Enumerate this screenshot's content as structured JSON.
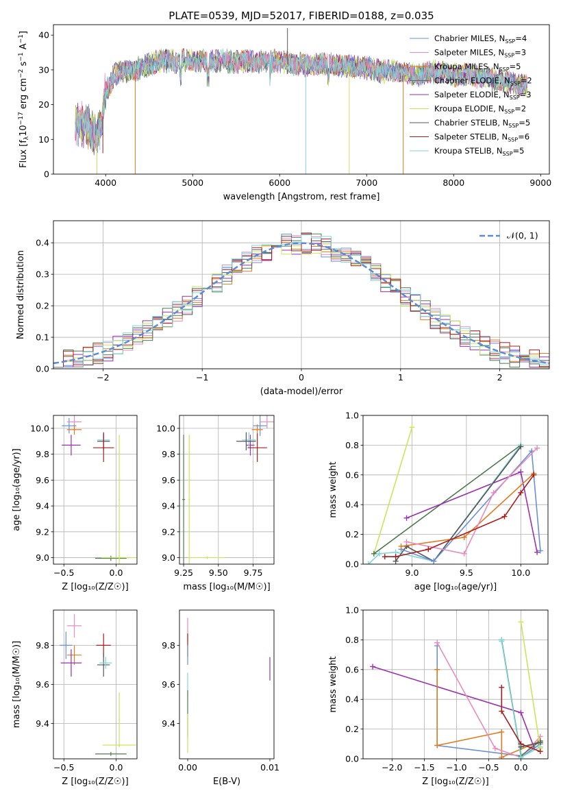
{
  "colors": {
    "Chabrier MILES": "#6a8fd8",
    "Salpeter MILES": "#e98bbd",
    "Kroupa MILES": "#e07b1e",
    "Chabrier ELODIE": "#4d7a4d",
    "Salpeter ELODIE": "#9b2fae",
    "Kroupa ELODIE": "#c9e65a",
    "Chabrier STELIB": "#555555",
    "Salpeter STELIB": "#a81c1c",
    "Kroupa STELIB": "#7fd6d9",
    "gauss": "#5b8ad6"
  },
  "chart_data": [
    {
      "id": "spectrum",
      "type": "line",
      "title": "PLATE=0539, MJD=52017, FIBERID=0188, z=0.035",
      "xlabel": "wavelength [Angstrom, rest frame]",
      "ylabel_parts": [
        "Flux [f",
        "λ",
        "10",
        "−17",
        " erg cm",
        "−2",
        " s",
        "−1",
        " A",
        "−1",
        "]"
      ],
      "xlim": [
        3400,
        9100
      ],
      "ylim": [
        0,
        43
      ],
      "xticks": [
        4000,
        5000,
        6000,
        7000,
        8000,
        9000
      ],
      "yticks": [
        0,
        10,
        20,
        30,
        40
      ],
      "legend": [
        {
          "model": "Chabrier MILES",
          "label": "Chabrier MILES, N",
          "sub": "SSP",
          "n": "=4"
        },
        {
          "model": "Salpeter MILES",
          "label": "Salpeter MILES, N",
          "sub": "SSP",
          "n": "=3"
        },
        {
          "model": "Kroupa MILES",
          "label": "Kroupa MILES, N",
          "sub": "SSP",
          "n": "=5"
        },
        {
          "model": "Chabrier ELODIE",
          "label": "Chabrier ELODIE, N",
          "sub": "SSP",
          "n": "=2"
        },
        {
          "model": "Salpeter ELODIE",
          "label": "Salpeter ELODIE, N",
          "sub": "SSP",
          "n": "=3"
        },
        {
          "model": "Kroupa ELODIE",
          "label": "Kroupa ELODIE, N",
          "sub": "SSP",
          "n": "=2"
        },
        {
          "model": "Chabrier STELIB",
          "label": "Chabrier STELIB, N",
          "sub": "SSP",
          "n": "=5"
        },
        {
          "model": "Salpeter STELIB",
          "label": "Salpeter STELIB, N",
          "sub": "SSP",
          "n": "=6"
        },
        {
          "model": "Kroupa STELIB",
          "label": "Kroupa STELIB, N",
          "sub": "SSP",
          "n": "=5"
        }
      ],
      "continuum": [
        [
          3650,
          18
        ],
        [
          3800,
          16
        ],
        [
          3900,
          14
        ],
        [
          3950,
          16
        ],
        [
          4000,
          26
        ],
        [
          4100,
          31
        ],
        [
          4200,
          32
        ],
        [
          4400,
          33
        ],
        [
          4600,
          35
        ],
        [
          4800,
          35
        ],
        [
          5000,
          35
        ],
        [
          5200,
          35
        ],
        [
          5400,
          35
        ],
        [
          5600,
          35
        ],
        [
          5800,
          35
        ],
        [
          6000,
          35
        ],
        [
          6200,
          34
        ],
        [
          6400,
          34
        ],
        [
          6600,
          34
        ],
        [
          6800,
          33.5
        ],
        [
          7000,
          33
        ],
        [
          7200,
          32
        ],
        [
          7400,
          32
        ],
        [
          7600,
          31
        ],
        [
          7800,
          32
        ],
        [
          8000,
          31
        ],
        [
          8200,
          31
        ],
        [
          8400,
          30
        ],
        [
          8600,
          29
        ],
        [
          8850,
          28
        ]
      ],
      "dips": [
        {
          "x": 3934,
          "y": 7,
          "model": "Kroupa STELIB"
        },
        {
          "x": 3968,
          "y": 6,
          "model": "Salpeter STELIB"
        },
        {
          "x": 3900,
          "y": 0,
          "model": "Kroupa ELODIE"
        },
        {
          "x": 4340,
          "y": 0,
          "model": "Kroupa MILES"
        },
        {
          "x": 6300,
          "y": 0,
          "model": "Kroupa STELIB"
        },
        {
          "x": 6800,
          "y": 0,
          "model": "Kroupa ELODIE"
        },
        {
          "x": 7420,
          "y": 0,
          "model": "Kroupa MILES"
        },
        {
          "x": 6090,
          "y": 42,
          "model": "Chabrier STELIB"
        }
      ]
    },
    {
      "id": "residuals",
      "type": "histogram",
      "xlabel": "(data-model)/error",
      "ylabel": "Normed distribution",
      "xlim": [
        -2.5,
        2.5
      ],
      "ylim": [
        0,
        0.47
      ],
      "xticks": [
        -2,
        -1,
        0,
        1,
        2
      ],
      "yticks": [
        0.0,
        0.1,
        0.2,
        0.3,
        0.4
      ],
      "grid": true,
      "legend": {
        "label": "𝒩(0, 1)",
        "position": "top-right"
      }
    },
    {
      "id": "age-vs-Z",
      "type": "errorbar",
      "xlabel": "Z [log₁₀(Z/Z☉)]",
      "ylabel": "age  [log₁₀(age/yr)]",
      "xlim": [
        -0.6,
        0.2
      ],
      "ylim": [
        8.95,
        10.1
      ],
      "xticks": [
        -0.5,
        0.0
      ],
      "yticks": [
        9.0,
        9.2,
        9.4,
        9.6,
        9.8,
        10.0
      ],
      "grid": true,
      "points": [
        {
          "model": "Chabrier MILES",
          "x": -0.45,
          "xerr": 0.07,
          "y": 10.02,
          "yerr": 0.06
        },
        {
          "model": "Salpeter MILES",
          "x": -0.4,
          "xerr": 0.07,
          "y": 10.05,
          "yerr": 0.05
        },
        {
          "model": "Kroupa MILES",
          "x": -0.4,
          "xerr": 0.07,
          "y": 9.99,
          "yerr": 0.04
        },
        {
          "model": "Salpeter ELODIE",
          "x": -0.43,
          "xerr": 0.09,
          "y": 9.87,
          "yerr": 0.08
        },
        {
          "model": "Kroupa STELIB",
          "x": -0.12,
          "xerr": 0.06,
          "y": 9.91,
          "yerr": 0.06
        },
        {
          "model": "Chabrier STELIB",
          "x": -0.12,
          "xerr": 0.06,
          "y": 9.9,
          "yerr": 0.07
        },
        {
          "model": "Salpeter STELIB",
          "x": -0.12,
          "xerr": 0.1,
          "y": 9.85,
          "yerr": 0.11
        },
        {
          "model": "Chabrier ELODIE",
          "x": -0.05,
          "xerr": 0.15,
          "y": 8.995,
          "yerr": 0.02
        },
        {
          "model": "Kroupa ELODIE",
          "x": 0.03,
          "xerr": 0.17,
          "y": 9.0,
          "yerr": 0.02
        },
        {
          "model": "Kroupa ELODIE",
          "x": 0.03,
          "xerr": 0.005,
          "y": 9.45,
          "yerr": 0.5
        }
      ]
    },
    {
      "id": "age-vs-mass",
      "type": "errorbar",
      "xlabel": "mass [log₁₀(M/M☉)]",
      "ylabel": "",
      "xlim": [
        9.22,
        9.9
      ],
      "ylim": [
        8.95,
        10.1
      ],
      "xticks": [
        9.25,
        9.5,
        9.75
      ],
      "yticks": [
        9.0,
        9.2,
        9.4,
        9.6,
        9.8,
        10.0
      ],
      "grid": true,
      "points": [
        {
          "model": "Chabrier MILES",
          "x": 9.8,
          "xerr": 0.05,
          "y": 10.02,
          "yerr": 0.08
        },
        {
          "model": "Salpeter MILES",
          "x": 9.85,
          "xerr": 0.05,
          "y": 10.05,
          "yerr": 0.05
        },
        {
          "model": "Kroupa MILES",
          "x": 9.78,
          "xerr": 0.04,
          "y": 9.99,
          "yerr": 0.04
        },
        {
          "model": "Salpeter ELODIE",
          "x": 9.73,
          "xerr": 0.03,
          "y": 9.87,
          "yerr": 0.08
        },
        {
          "model": "Kroupa STELIB",
          "x": 9.72,
          "xerr": 0.05,
          "y": 9.91,
          "yerr": 0.06
        },
        {
          "model": "Chabrier STELIB",
          "x": 9.7,
          "xerr": 0.07,
          "y": 9.9,
          "yerr": 0.07
        },
        {
          "model": "Salpeter STELIB",
          "x": 9.78,
          "xerr": 0.07,
          "y": 9.85,
          "yerr": 0.11
        },
        {
          "model": "Chabrier ELODIE",
          "x": 9.25,
          "xerr": 0.01,
          "y": 9.45,
          "yerr": 0.5
        },
        {
          "model": "Kroupa ELODIE",
          "x": 9.29,
          "xerr": 0.005,
          "y": 9.45,
          "yerr": 0.5
        },
        {
          "model": "Kroupa ELODIE",
          "x": 9.42,
          "xerr": 0.13,
          "y": 9.0,
          "yerr": 0.01
        }
      ]
    },
    {
      "id": "weight-vs-age",
      "type": "line",
      "xlabel": "age  [log₁₀(age/yr)]",
      "ylabel": "mass weight",
      "xlim": [
        8.55,
        10.25
      ],
      "ylim": [
        0,
        1.0
      ],
      "xticks": [
        9.0,
        9.5,
        10.0
      ],
      "yticks": [
        0.0,
        0.2,
        0.4,
        0.6,
        0.8,
        1.0
      ],
      "grid": true,
      "series": [
        {
          "model": "Kroupa ELODIE",
          "x": [
            8.65,
            9.0
          ],
          "y": [
            0.07,
            0.92
          ]
        },
        {
          "model": "Chabrier ELODIE",
          "x": [
            8.65,
            10.0
          ],
          "y": [
            0.07,
            0.8
          ]
        },
        {
          "model": "Salpeter ELODIE",
          "x": [
            8.95,
            10.0,
            10.15
          ],
          "y": [
            0.31,
            0.62,
            0.08
          ]
        },
        {
          "model": "Kroupa STELIB",
          "x": [
            8.6,
            8.7,
            8.85,
            9.2,
            10.0
          ],
          "y": [
            0.0,
            0.07,
            0.08,
            0.02,
            0.8
          ]
        },
        {
          "model": "Chabrier STELIB",
          "x": [
            8.85,
            8.95,
            9.2,
            10.0
          ],
          "y": [
            0.02,
            0.12,
            0.02,
            0.79
          ]
        },
        {
          "model": "Chabrier MILES",
          "x": [
            8.9,
            9.2,
            10.1,
            10.18
          ],
          "y": [
            0.1,
            0.02,
            0.76,
            0.09
          ]
        },
        {
          "model": "Kroupa MILES",
          "x": [
            8.9,
            9.48,
            10.12
          ],
          "y": [
            0.12,
            0.18,
            0.61
          ]
        },
        {
          "model": "Salpeter MILES",
          "x": [
            8.95,
            9.48,
            9.75,
            10.15
          ],
          "y": [
            0.15,
            0.07,
            0.48,
            0.78
          ]
        },
        {
          "model": "Salpeter STELIB",
          "x": [
            8.75,
            8.85,
            9.15,
            9.85,
            10.0,
            10.12
          ],
          "y": [
            0.05,
            0.05,
            0.1,
            0.32,
            0.48,
            0.6
          ]
        }
      ]
    },
    {
      "id": "mass-vs-Z",
      "type": "errorbar",
      "xlabel": "Z [log₁₀(Z/Z☉)]",
      "ylabel": "mass [log₁₀(M/M☉)]",
      "xlim": [
        -0.6,
        0.2
      ],
      "ylim": [
        9.22,
        9.98
      ],
      "xticks": [
        -0.5,
        0.0
      ],
      "yticks": [
        9.4,
        9.6,
        9.8
      ],
      "grid": true,
      "points": [
        {
          "model": "Chabrier MILES",
          "x": -0.48,
          "xerr": 0.06,
          "y": 9.8,
          "yerr": 0.07
        },
        {
          "model": "Salpeter MILES",
          "x": -0.4,
          "xerr": 0.07,
          "y": 9.9,
          "yerr": 0.06
        },
        {
          "model": "Kroupa MILES",
          "x": -0.4,
          "xerr": 0.07,
          "y": 9.75,
          "yerr": 0.05
        },
        {
          "model": "Salpeter ELODIE",
          "x": -0.43,
          "xerr": 0.1,
          "y": 9.71,
          "yerr": 0.07
        },
        {
          "model": "Salpeter STELIB",
          "x": -0.12,
          "xerr": 0.07,
          "y": 9.8,
          "yerr": 0.06
        },
        {
          "model": "Chabrier STELIB",
          "x": -0.12,
          "xerr": 0.06,
          "y": 9.7,
          "yerr": 0.06
        },
        {
          "model": "Kroupa STELIB",
          "x": -0.1,
          "xerr": 0.06,
          "y": 9.71,
          "yerr": 0.03
        },
        {
          "model": "Kroupa ELODIE",
          "x": 0.03,
          "xerr": 0.16,
          "y": 9.29,
          "yerr": 0.01
        },
        {
          "model": "Chabrier ELODIE",
          "x": -0.05,
          "xerr": 0.15,
          "y": 9.245,
          "yerr": 0.01
        },
        {
          "model": "Kroupa ELODIE",
          "x": 0.03,
          "xerr": 0.005,
          "y": 9.42,
          "yerr": 0.14
        }
      ]
    },
    {
      "id": "EBV",
      "type": "errorbar",
      "xlabel": "E(B-V)",
      "ylabel": "",
      "xlim": [
        -0.001,
        0.0105
      ],
      "ylim": [
        9.22,
        9.98
      ],
      "xticks": [
        0.0,
        0.01
      ],
      "yticks": [
        9.4,
        9.6,
        9.8
      ],
      "grid": false,
      "points": [
        {
          "model": "Salpeter MILES",
          "x": 0.0,
          "xerr": 3e-05,
          "y": 9.88,
          "yerr": 0.06
        },
        {
          "model": "Salpeter STELIB",
          "x": 0.0,
          "xerr": 3e-05,
          "y": 9.8,
          "yerr": 0.06
        },
        {
          "model": "Chabrier MILES",
          "x": 0.0,
          "xerr": 3e-05,
          "y": 9.75,
          "yerr": 0.05
        },
        {
          "model": "Kroupa STELIB",
          "x": 0.0,
          "xerr": 3e-05,
          "y": 9.6,
          "yerr": 0.06
        },
        {
          "model": "Chabrier ELODIE",
          "x": 0.0,
          "xerr": 3e-05,
          "y": 9.45,
          "yerr": 0.12
        },
        {
          "model": "Kroupa ELODIE",
          "x": 0.0,
          "xerr": 3e-05,
          "y": 9.35,
          "yerr": 0.1
        },
        {
          "model": "Salpeter ELODIE",
          "x": 0.01,
          "xerr": 3e-05,
          "y": 9.68,
          "yerr": 0.06
        }
      ]
    },
    {
      "id": "weight-vs-Z",
      "type": "line",
      "xlabel": "Z [log₁₀(Z/Z☉)]",
      "ylabel": "mass weight",
      "xlim": [
        -2.45,
        0.42
      ],
      "ylim": [
        0,
        1.0
      ],
      "xticks": [
        -2.0,
        -1.5,
        -1.0,
        -0.5,
        0.0
      ],
      "yticks": [
        0.0,
        0.2,
        0.4,
        0.6,
        0.8,
        1.0
      ],
      "grid": true,
      "series": [
        {
          "model": "Salpeter ELODIE",
          "x": [
            -2.3,
            0.0,
            0.2
          ],
          "y": [
            0.62,
            0.31,
            0.08
          ]
        },
        {
          "model": "Chabrier MILES",
          "x": [
            -1.3,
            -1.3,
            -1.3,
            0.0,
            0.0,
            0.3
          ],
          "y": [
            0.76,
            0.6,
            0.09,
            0.02,
            0.01,
            0.1
          ]
        },
        {
          "model": "Kroupa MILES",
          "x": [
            -1.3,
            -1.3,
            -0.3,
            -0.3,
            0.3
          ],
          "y": [
            0.6,
            0.09,
            0.18,
            0.01,
            0.12
          ]
        },
        {
          "model": "Salpeter MILES",
          "x": [
            -1.3,
            -0.4,
            0.0,
            0.3
          ],
          "y": [
            0.78,
            0.07,
            0.01,
            0.15
          ]
        },
        {
          "model": "Chabrier ELODIE",
          "x": [
            -0.3,
            0.0,
            0.3
          ],
          "y": [
            0.8,
            0.02,
            0.12
          ]
        },
        {
          "model": "Kroupa STELIB",
          "x": [
            -0.3,
            -0.3,
            0.0,
            0.3
          ],
          "y": [
            0.8,
            0.79,
            0.01,
            0.08
          ]
        },
        {
          "model": "Kroupa ELODIE",
          "x": [
            0.0,
            0.3
          ],
          "y": [
            0.92,
            0.07
          ]
        },
        {
          "model": "Salpeter STELIB",
          "x": [
            -0.3,
            -0.3,
            0.0,
            0.3
          ],
          "y": [
            0.48,
            0.32,
            0.1,
            0.05
          ]
        },
        {
          "model": "Chabrier STELIB",
          "x": [
            0.0,
            0.3
          ],
          "y": [
            0.08,
            0.11
          ]
        }
      ]
    }
  ]
}
